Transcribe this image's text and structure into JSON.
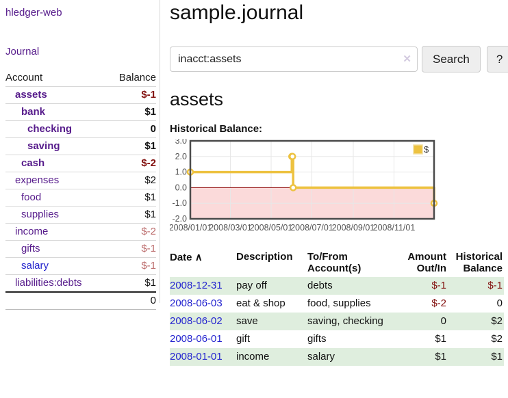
{
  "colors": {
    "link_purple": "#561b8b",
    "link_blue": "#2222cc",
    "negative_dark": "#82100e",
    "negative_light": "#bb6a6a",
    "row_shade_green": "#dfeede",
    "chart_series_yellow": "#edc240",
    "chart_negative_region": "#fbdada",
    "chart_zero_line": "#8b0000",
    "chart_border": "#4a4a4a",
    "chart_grid": "#e7e7e7",
    "chart_tick_text": "#545454"
  },
  "icons": {
    "sort_asc": "∧",
    "clear": "✕",
    "help": "?"
  },
  "sidebar": {
    "app_title": "hledger-web",
    "journal_link": "Journal",
    "accounts": {
      "headers": {
        "account": "Account",
        "balance": "Balance"
      },
      "rows": [
        {
          "label": "assets",
          "indent": 1,
          "bold": true,
          "balance": "$-1",
          "bclass": "neg"
        },
        {
          "label": "bank",
          "indent": 2,
          "bold": true,
          "balance": "$1",
          "bclass": ""
        },
        {
          "label": "checking",
          "indent": 3,
          "bold": true,
          "balance": "0",
          "bclass": ""
        },
        {
          "label": "saving",
          "indent": 3,
          "bold": true,
          "balance": "$1",
          "bclass": ""
        },
        {
          "label": "cash",
          "indent": 2,
          "bold": true,
          "balance": "$-2",
          "bclass": "neg"
        },
        {
          "label": "expenses",
          "indent": 1,
          "bold": false,
          "balance": "$2",
          "bclass": ""
        },
        {
          "label": "food",
          "indent": 2,
          "bold": false,
          "balance": "$1",
          "bclass": ""
        },
        {
          "label": "supplies",
          "indent": 2,
          "bold": false,
          "balance": "$1",
          "bclass": ""
        },
        {
          "label": "income",
          "indent": 1,
          "bold": false,
          "balance": "$-2",
          "bclass": "neg-light"
        },
        {
          "label": "gifts",
          "indent": 2,
          "bold": false,
          "balance": "$-1",
          "bclass": "neg-light"
        },
        {
          "label": "salary",
          "indent": 2,
          "bold": false,
          "balance": "$-1",
          "bclass": "neg-light",
          "link_color": "blue"
        },
        {
          "label": "liabilities:debts",
          "indent": 1,
          "bold": false,
          "balance": "$1",
          "bclass": ""
        }
      ],
      "total": "0"
    }
  },
  "header": {
    "title": "sample.journal"
  },
  "search": {
    "value": "inacct:assets",
    "button_label": "Search",
    "help_label": "?"
  },
  "account_page": {
    "heading": "assets",
    "chart_title": "Historical Balance:"
  },
  "chart_data": {
    "type": "line",
    "style": "step",
    "title": "Historical Balance",
    "legend": [
      {
        "label": "$",
        "color": "#edc240"
      }
    ],
    "legend_position": "top-right",
    "x_range": [
      "2008-01-01",
      "2008-12-31"
    ],
    "ylim": [
      -2.0,
      3.0
    ],
    "y_ticks": [
      3.0,
      2.0,
      1.0,
      0.0,
      -1.0,
      -2.0
    ],
    "y_tick_labels": [
      "3.0",
      "2.0",
      "1.0",
      "0.0",
      "-1.0",
      "-2.0"
    ],
    "x_tick_dates": [
      "2008-01-01",
      "2008-03-01",
      "2008-05-01",
      "2008-07-01",
      "2008-09-01",
      "2008-11-01"
    ],
    "x_tick_labels": [
      "2008/01/01",
      "2008/03/01",
      "2008/05/01",
      "2008/07/01",
      "2008/09/01",
      "2008/11/01"
    ],
    "grid": true,
    "negative_region_shaded": true,
    "series": [
      {
        "name": "$",
        "points": [
          {
            "date": "2008-01-01",
            "value": 1
          },
          {
            "date": "2008-06-01",
            "value": 2
          },
          {
            "date": "2008-06-02",
            "value": 2
          },
          {
            "date": "2008-06-03",
            "value": 0
          },
          {
            "date": "2008-12-31",
            "value": -1
          }
        ]
      }
    ]
  },
  "register": {
    "headers": {
      "date": "Date",
      "description": "Description",
      "accounts": "To/From Account(s)",
      "amount": "Amount Out/In",
      "balance": "Historical Balance"
    },
    "rows": [
      {
        "date": "2008-12-31",
        "description": "pay off",
        "accounts": "debts",
        "amount": "$-1",
        "aclass": "neg",
        "balance": "$-1",
        "bclass": "neg",
        "shade": true
      },
      {
        "date": "2008-06-03",
        "description": "eat & shop",
        "accounts": "food, supplies",
        "amount": "$-2",
        "aclass": "neg",
        "balance": "0",
        "bclass": "",
        "shade": false
      },
      {
        "date": "2008-06-02",
        "description": "save",
        "accounts": "saving, checking",
        "amount": "0",
        "aclass": "",
        "balance": "$2",
        "bclass": "",
        "shade": true
      },
      {
        "date": "2008-06-01",
        "description": "gift",
        "accounts": "gifts",
        "amount": "$1",
        "aclass": "",
        "balance": "$2",
        "bclass": "",
        "shade": false
      },
      {
        "date": "2008-01-01",
        "description": "income",
        "accounts": "salary",
        "amount": "$1",
        "aclass": "",
        "balance": "$1",
        "bclass": "",
        "shade": true
      }
    ]
  }
}
